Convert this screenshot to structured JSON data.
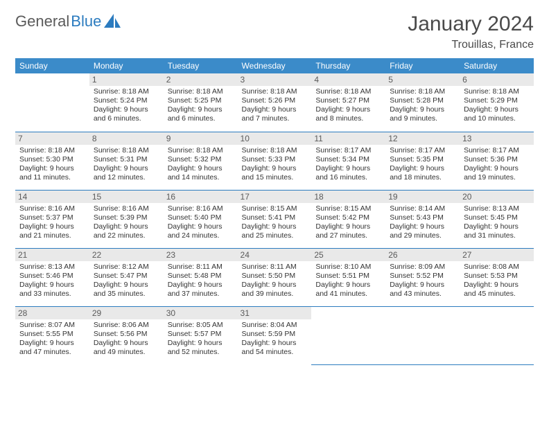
{
  "brand": {
    "part1": "General",
    "part2": "Blue"
  },
  "title": "January 2024",
  "location": "Trouillas, France",
  "weekdays": [
    "Sunday",
    "Monday",
    "Tuesday",
    "Wednesday",
    "Thursday",
    "Friday",
    "Saturday"
  ],
  "colors": {
    "header_bg": "#3b8bc9",
    "header_text": "#ffffff",
    "divider": "#2b7bbf",
    "daynum_bg": "#e9e9e9",
    "text": "#333333",
    "brand_gray": "#5a5a5a",
    "brand_blue": "#2b7bbf"
  },
  "start_weekday": 1,
  "days": [
    {
      "n": 1,
      "sunrise": "8:18 AM",
      "sunset": "5:24 PM",
      "daylight": "9 hours and 6 minutes."
    },
    {
      "n": 2,
      "sunrise": "8:18 AM",
      "sunset": "5:25 PM",
      "daylight": "9 hours and 6 minutes."
    },
    {
      "n": 3,
      "sunrise": "8:18 AM",
      "sunset": "5:26 PM",
      "daylight": "9 hours and 7 minutes."
    },
    {
      "n": 4,
      "sunrise": "8:18 AM",
      "sunset": "5:27 PM",
      "daylight": "9 hours and 8 minutes."
    },
    {
      "n": 5,
      "sunrise": "8:18 AM",
      "sunset": "5:28 PM",
      "daylight": "9 hours and 9 minutes."
    },
    {
      "n": 6,
      "sunrise": "8:18 AM",
      "sunset": "5:29 PM",
      "daylight": "9 hours and 10 minutes."
    },
    {
      "n": 7,
      "sunrise": "8:18 AM",
      "sunset": "5:30 PM",
      "daylight": "9 hours and 11 minutes."
    },
    {
      "n": 8,
      "sunrise": "8:18 AM",
      "sunset": "5:31 PM",
      "daylight": "9 hours and 12 minutes."
    },
    {
      "n": 9,
      "sunrise": "8:18 AM",
      "sunset": "5:32 PM",
      "daylight": "9 hours and 14 minutes."
    },
    {
      "n": 10,
      "sunrise": "8:18 AM",
      "sunset": "5:33 PM",
      "daylight": "9 hours and 15 minutes."
    },
    {
      "n": 11,
      "sunrise": "8:17 AM",
      "sunset": "5:34 PM",
      "daylight": "9 hours and 16 minutes."
    },
    {
      "n": 12,
      "sunrise": "8:17 AM",
      "sunset": "5:35 PM",
      "daylight": "9 hours and 18 minutes."
    },
    {
      "n": 13,
      "sunrise": "8:17 AM",
      "sunset": "5:36 PM",
      "daylight": "9 hours and 19 minutes."
    },
    {
      "n": 14,
      "sunrise": "8:16 AM",
      "sunset": "5:37 PM",
      "daylight": "9 hours and 21 minutes."
    },
    {
      "n": 15,
      "sunrise": "8:16 AM",
      "sunset": "5:39 PM",
      "daylight": "9 hours and 22 minutes."
    },
    {
      "n": 16,
      "sunrise": "8:16 AM",
      "sunset": "5:40 PM",
      "daylight": "9 hours and 24 minutes."
    },
    {
      "n": 17,
      "sunrise": "8:15 AM",
      "sunset": "5:41 PM",
      "daylight": "9 hours and 25 minutes."
    },
    {
      "n": 18,
      "sunrise": "8:15 AM",
      "sunset": "5:42 PM",
      "daylight": "9 hours and 27 minutes."
    },
    {
      "n": 19,
      "sunrise": "8:14 AM",
      "sunset": "5:43 PM",
      "daylight": "9 hours and 29 minutes."
    },
    {
      "n": 20,
      "sunrise": "8:13 AM",
      "sunset": "5:45 PM",
      "daylight": "9 hours and 31 minutes."
    },
    {
      "n": 21,
      "sunrise": "8:13 AM",
      "sunset": "5:46 PM",
      "daylight": "9 hours and 33 minutes."
    },
    {
      "n": 22,
      "sunrise": "8:12 AM",
      "sunset": "5:47 PM",
      "daylight": "9 hours and 35 minutes."
    },
    {
      "n": 23,
      "sunrise": "8:11 AM",
      "sunset": "5:48 PM",
      "daylight": "9 hours and 37 minutes."
    },
    {
      "n": 24,
      "sunrise": "8:11 AM",
      "sunset": "5:50 PM",
      "daylight": "9 hours and 39 minutes."
    },
    {
      "n": 25,
      "sunrise": "8:10 AM",
      "sunset": "5:51 PM",
      "daylight": "9 hours and 41 minutes."
    },
    {
      "n": 26,
      "sunrise": "8:09 AM",
      "sunset": "5:52 PM",
      "daylight": "9 hours and 43 minutes."
    },
    {
      "n": 27,
      "sunrise": "8:08 AM",
      "sunset": "5:53 PM",
      "daylight": "9 hours and 45 minutes."
    },
    {
      "n": 28,
      "sunrise": "8:07 AM",
      "sunset": "5:55 PM",
      "daylight": "9 hours and 47 minutes."
    },
    {
      "n": 29,
      "sunrise": "8:06 AM",
      "sunset": "5:56 PM",
      "daylight": "9 hours and 49 minutes."
    },
    {
      "n": 30,
      "sunrise": "8:05 AM",
      "sunset": "5:57 PM",
      "daylight": "9 hours and 52 minutes."
    },
    {
      "n": 31,
      "sunrise": "8:04 AM",
      "sunset": "5:59 PM",
      "daylight": "9 hours and 54 minutes."
    }
  ],
  "labels": {
    "sunrise": "Sunrise:",
    "sunset": "Sunset:",
    "daylight": "Daylight:"
  }
}
